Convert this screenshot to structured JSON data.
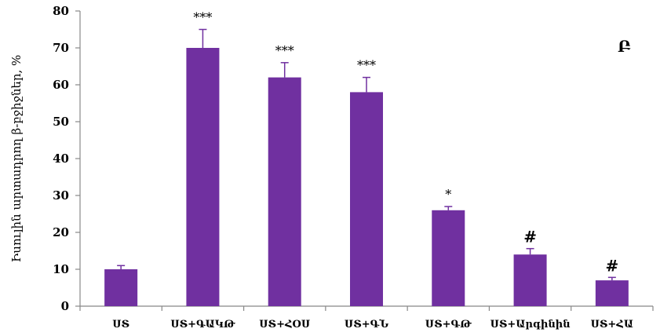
{
  "chart_data": {
    "type": "bar",
    "categories": [
      "ՍՏ",
      "ՍՏ+ԳԱԿԹ",
      "ՍՏ+ՀՕՍ",
      "ՍՏ+ԳՆ",
      "ՍՏ+ԳԹ",
      "ՍՏ+Արգինին",
      "ՍՏ+ՀԱ"
    ],
    "values": [
      10,
      70,
      62,
      58,
      26,
      14,
      7
    ],
    "errors": [
      1,
      5,
      4,
      4,
      1,
      1.6,
      0.8
    ],
    "annotations": [
      "",
      "***",
      "***",
      "***",
      "*",
      "#",
      "#"
    ],
    "ylabel": "Իսուլին արտադրող β-բջիջներ, %",
    "ylim": [
      0,
      80
    ],
    "yticks": [
      "0",
      "10",
      "20",
      "30",
      "40",
      "50",
      "60",
      "70",
      "80"
    ],
    "panel_letter": "Բ",
    "bar_color": "#7030a0",
    "grid": false,
    "legend": "none"
  }
}
